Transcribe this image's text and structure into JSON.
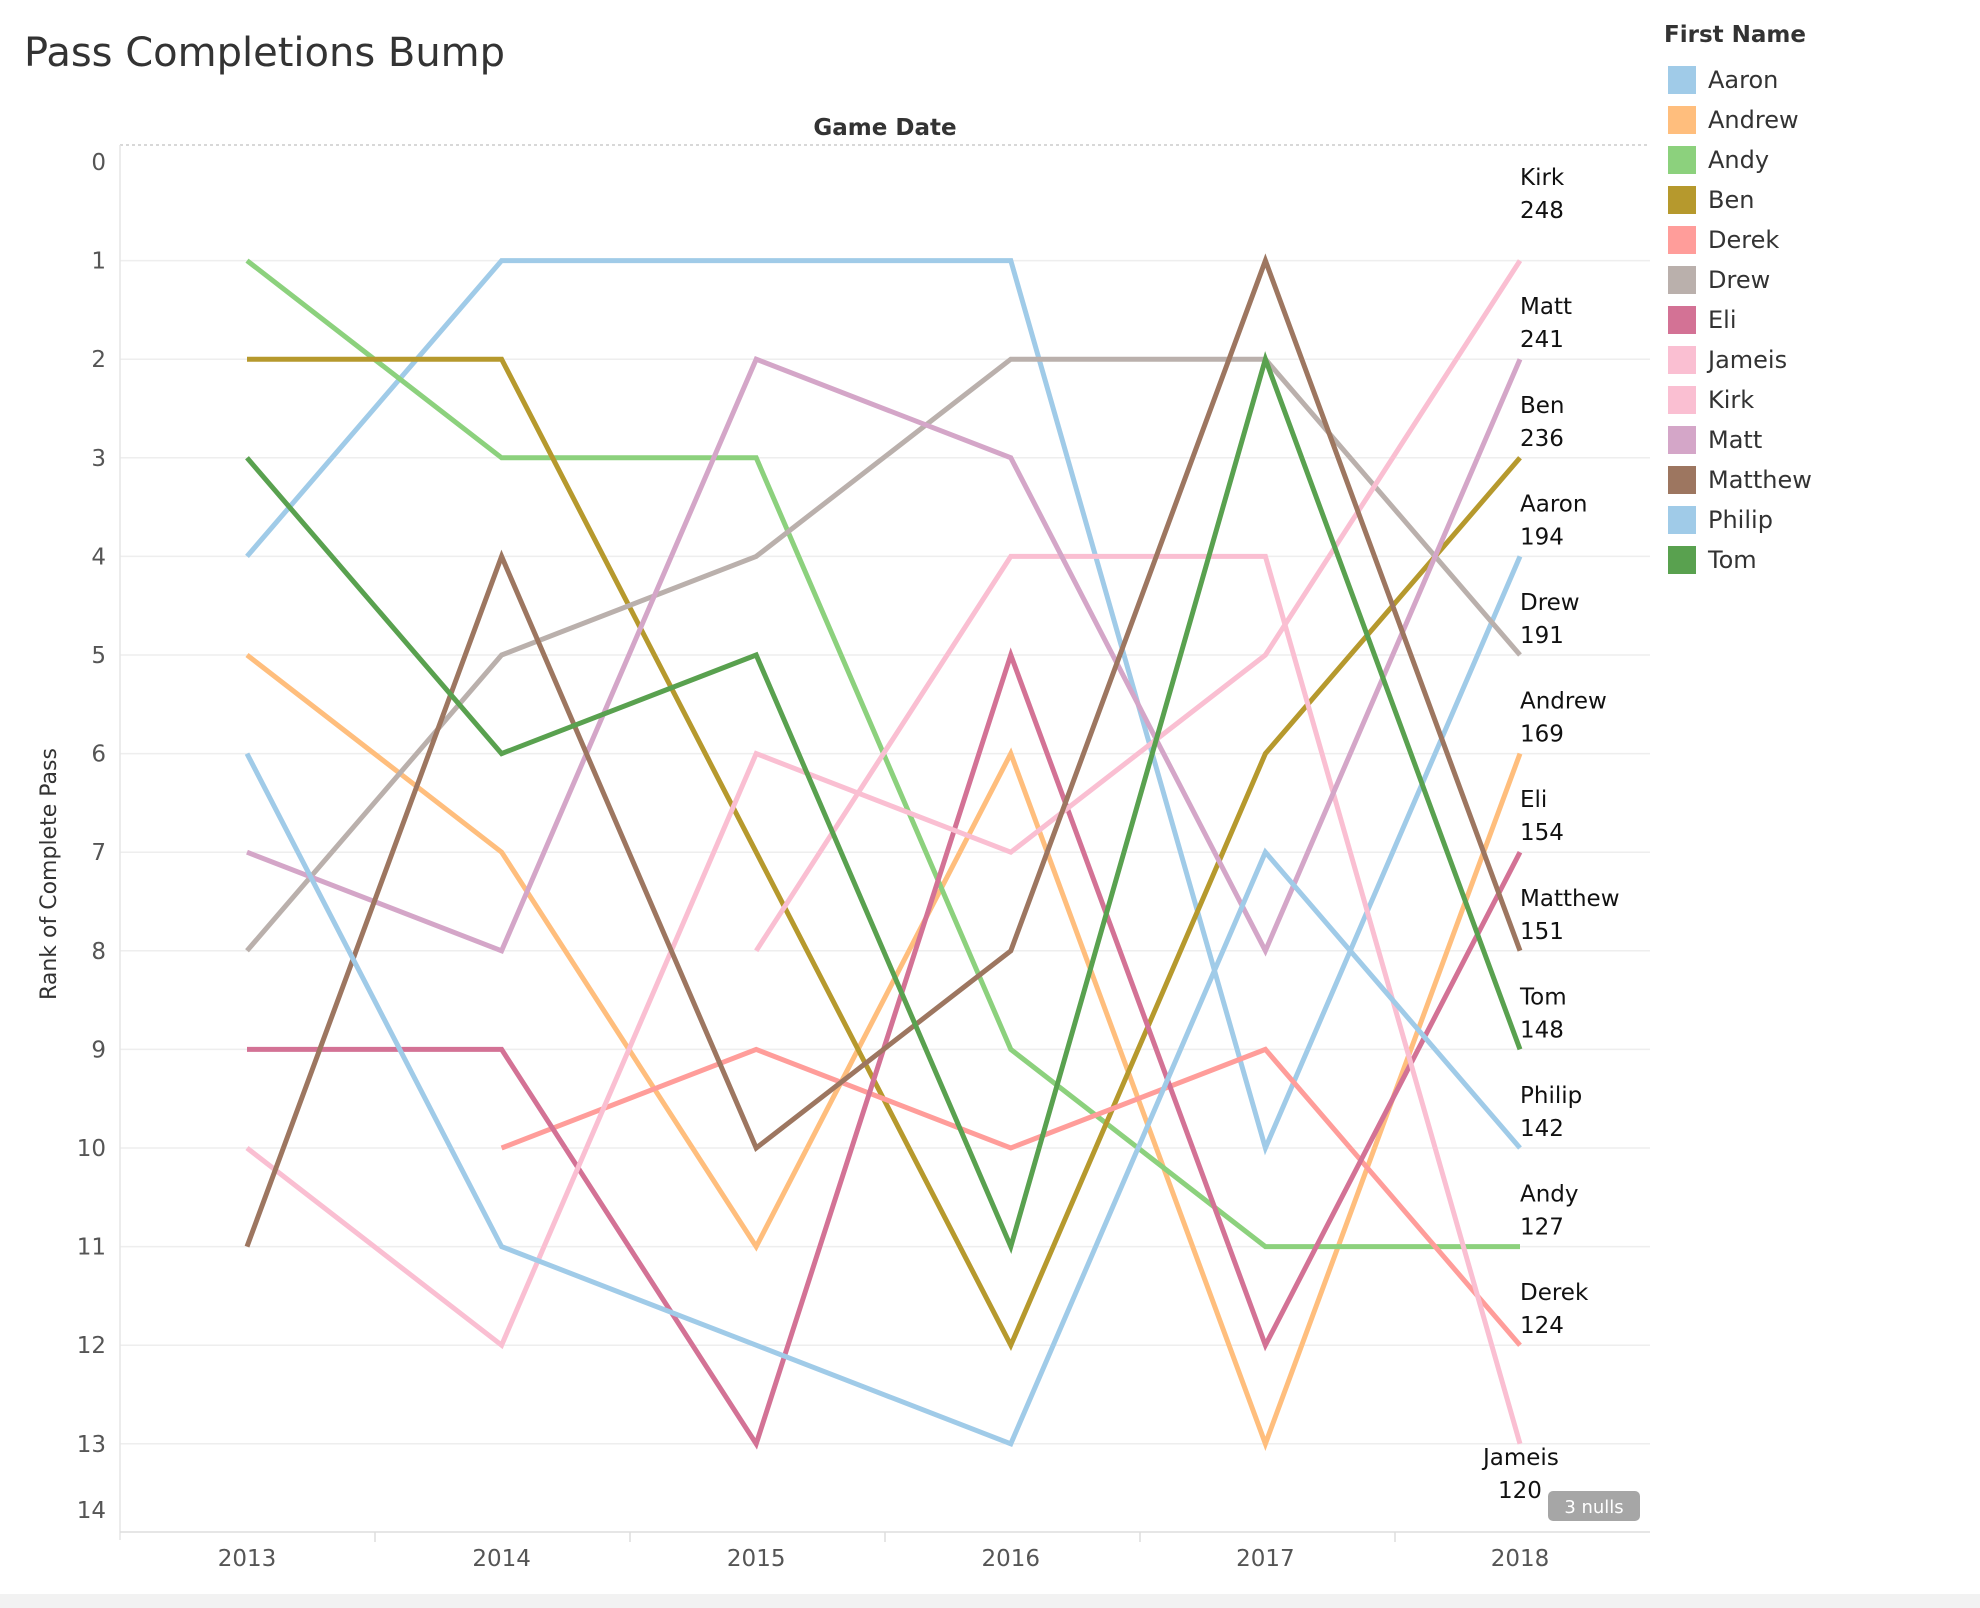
{
  "page": {
    "title": "Pass Completions Bump"
  },
  "legend": {
    "title": "First Name"
  },
  "nulls_badge": "3 nulls",
  "chart_data": {
    "type": "line",
    "title": "Pass Completions Bump",
    "column_header": "Game Date",
    "ylabel": "Rank of Complete Pass",
    "x": [
      "2013",
      "2014",
      "2015",
      "2016",
      "2017",
      "2018"
    ],
    "y_ticks": [
      "0",
      "1",
      "2",
      "3",
      "4",
      "5",
      "6",
      "7",
      "8",
      "9",
      "10",
      "11",
      "12",
      "13",
      "14"
    ],
    "ylim": [
      0,
      14
    ],
    "y_reversed": true,
    "grid": "horizontal",
    "legend_position": "right",
    "series": [
      {
        "name": "Aaron",
        "color": "#A0CBE8",
        "values": [
          4,
          1,
          1,
          1,
          10,
          4
        ],
        "end_label": [
          "Aaron",
          "194"
        ]
      },
      {
        "name": "Andrew",
        "color": "#FFBE7D",
        "values": [
          5,
          7,
          11,
          6,
          13,
          6
        ],
        "end_label": [
          "Andrew",
          "169"
        ]
      },
      {
        "name": "Andy",
        "color": "#8CD17D",
        "values": [
          1,
          3,
          3,
          9,
          11,
          11
        ],
        "end_label": [
          "Andy",
          "127"
        ]
      },
      {
        "name": "Ben",
        "color": "#B6992D",
        "values": [
          2,
          2,
          7,
          12,
          6,
          3
        ],
        "end_label": [
          "Ben",
          "236"
        ]
      },
      {
        "name": "Derek",
        "color": "#FF9D9A",
        "values": [
          null,
          10,
          9,
          10,
          9,
          12
        ],
        "end_label": [
          "Derek",
          "124"
        ]
      },
      {
        "name": "Drew",
        "color": "#BAB0AC",
        "values": [
          8,
          5,
          4,
          2,
          2,
          5
        ],
        "end_label": [
          "Drew",
          "191"
        ]
      },
      {
        "name": "Eli",
        "color": "#D37295",
        "values": [
          9,
          9,
          13,
          5,
          12,
          7
        ],
        "end_label": [
          "Eli",
          "154"
        ]
      },
      {
        "name": "Jameis",
        "color": "#FABFD2",
        "values": [
          null,
          null,
          8,
          4,
          4,
          13
        ],
        "end_label": [
          "Jameis",
          "120"
        ]
      },
      {
        "name": "Kirk",
        "color": "#FABFD2",
        "values": [
          10,
          12,
          6,
          7,
          5,
          1
        ],
        "end_label": [
          "Kirk",
          "248"
        ]
      },
      {
        "name": "Matt",
        "color": "#D4A6C8",
        "values": [
          7,
          8,
          2,
          3,
          8,
          2
        ],
        "end_label": [
          "Matt",
          "241"
        ]
      },
      {
        "name": "Matthew",
        "color": "#9D7660",
        "values": [
          11,
          4,
          10,
          8,
          1,
          8
        ],
        "end_label": [
          "Matthew",
          "151"
        ]
      },
      {
        "name": "Philip",
        "color": "#A0CBE8",
        "values": [
          6,
          11,
          12,
          13,
          7,
          10
        ],
        "end_label": [
          "Philip",
          "142"
        ]
      },
      {
        "name": "Tom",
        "color": "#59A14F",
        "values": [
          3,
          6,
          5,
          11,
          2,
          9
        ],
        "end_label": [
          "Tom",
          "148"
        ]
      }
    ]
  }
}
